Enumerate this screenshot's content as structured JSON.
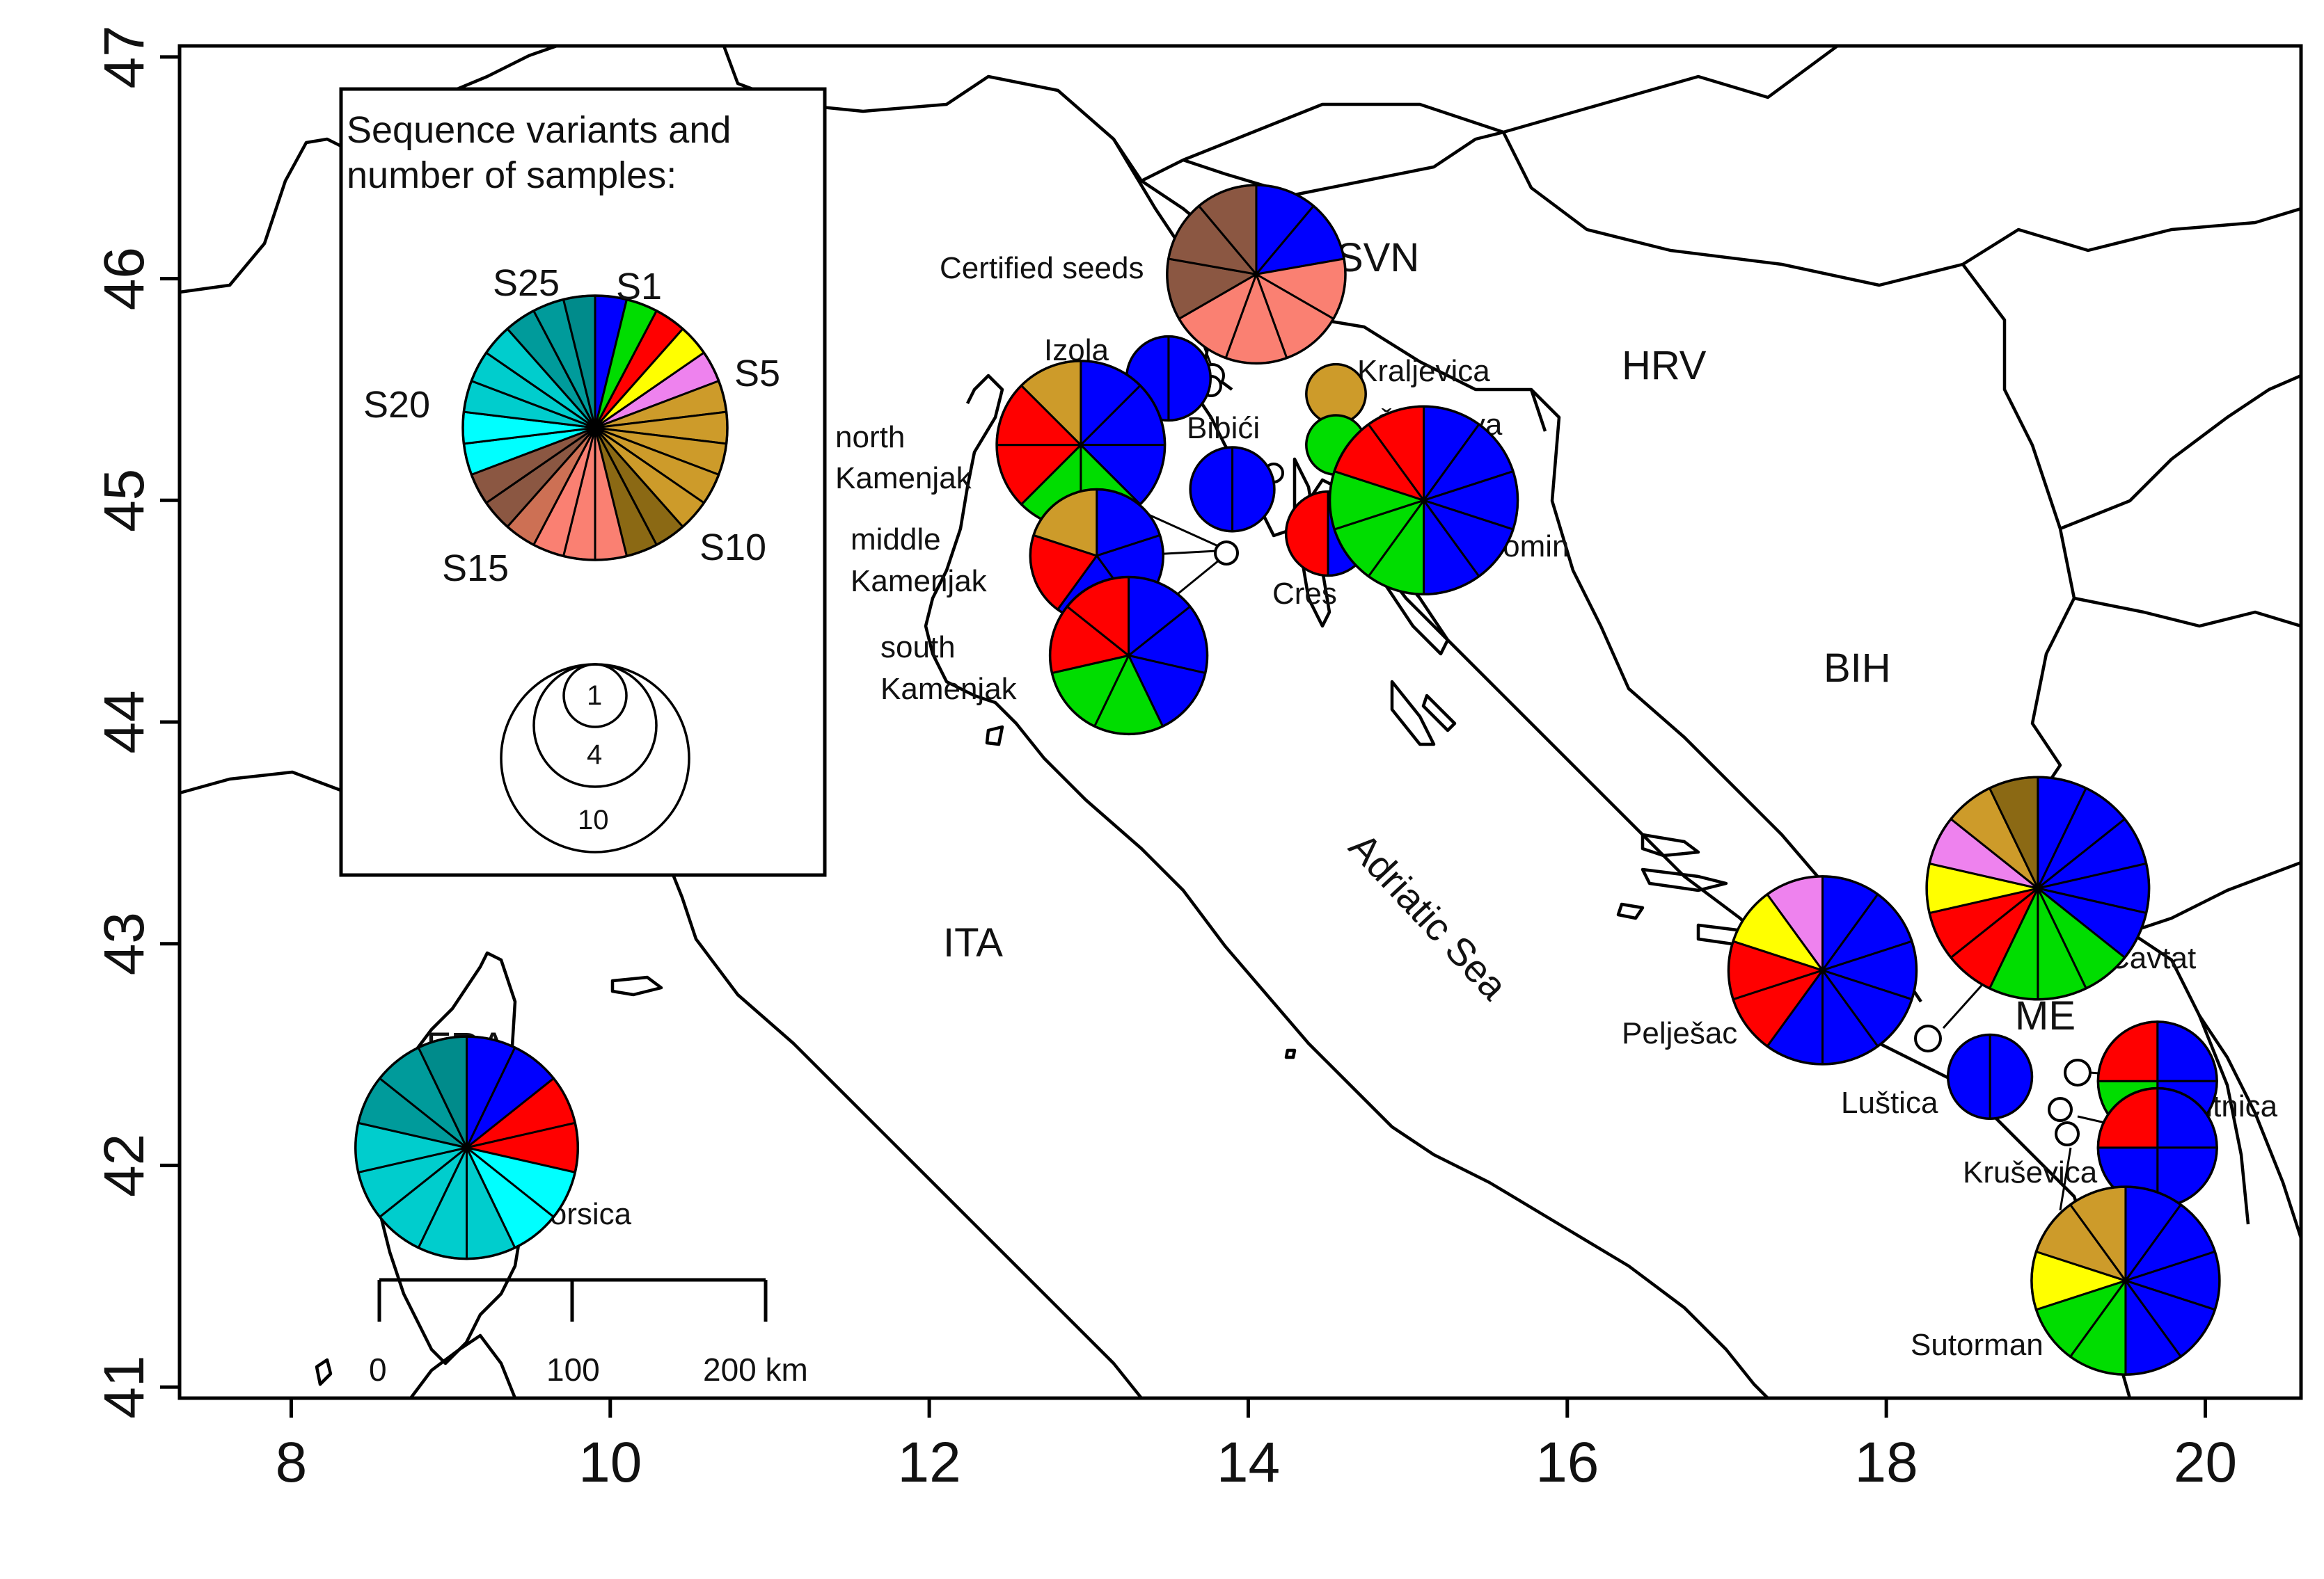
{
  "axes": {
    "x_ticks": [
      "8",
      "10",
      "12",
      "14",
      "16",
      "18",
      "20"
    ],
    "y_ticks": [
      "41",
      "42",
      "43",
      "44",
      "45",
      "46",
      "47"
    ],
    "x_range": [
      7.3,
      20.6
    ],
    "y_range": [
      40.95,
      47.05
    ]
  },
  "legend": {
    "title_line1": "Sequence variants and",
    "title_line2": "number of samples:",
    "variant_labels": [
      "S1",
      "S5",
      "S10",
      "S15",
      "S20",
      "S25"
    ],
    "size_labels": [
      "1",
      "4",
      "10"
    ]
  },
  "scale_bar": {
    "labels": [
      "0",
      "100",
      "200 km"
    ]
  },
  "labels": {
    "countries": [
      "SVN",
      "HRV",
      "BIH",
      "ITA",
      "ME",
      "FRA"
    ],
    "sea": "Adriatic Sea"
  },
  "palette": {
    "S1": "#0000ff",
    "S2": "#00dd00",
    "S3": "#ff0000",
    "S4": "#ffff00",
    "S5": "#ee82ee",
    "S6": "#cd9b2a",
    "S7": "#cd9b2a",
    "S8": "#cd9b2a",
    "S9": "#cd9b2a",
    "S10": "#cd9b2a",
    "S11": "#8b6914",
    "S12": "#8b6914",
    "S13": "#fa8072",
    "S14": "#fa8072",
    "S15": "#fa8072",
    "S16": "#cd7054",
    "S17": "#8b5742",
    "S18": "#8b5742",
    "S19": "#00ffff",
    "S20": "#00ffff",
    "S21": "#00cdcd",
    "S22": "#00cdcd",
    "S23": "#00cdcd",
    "S24": "#009b9b",
    "S25": "#009b9b",
    "S26": "#008b8b"
  },
  "sites": [
    {
      "name": "Certified seeds",
      "lon": 14.05,
      "lat": 46.02,
      "n": 9,
      "colors": [
        "#0000ff",
        "#0000ff",
        "#fa8072",
        "#fa8072",
        "#fa8072",
        "#fa8072",
        "#8b5742",
        "#8b5742",
        "#8b5742"
      ]
    },
    {
      "name": "Izola",
      "lon": 13.5,
      "lat": 45.55,
      "n": 2,
      "colors": [
        "#0000ff",
        "#0000ff"
      ]
    },
    {
      "name": "Kraljevica",
      "lon": 14.55,
      "lat": 45.48,
      "n": 1,
      "colors": [
        "#cd9b2a"
      ]
    },
    {
      "name": "Črišnjeva",
      "lon": 14.55,
      "lat": 45.25,
      "n": 1,
      "colors": [
        "#00dd00"
      ]
    },
    {
      "name": "Bibići",
      "lon": 13.9,
      "lat": 45.05,
      "n": 2,
      "colors": [
        "#0000ff",
        "#0000ff"
      ]
    },
    {
      "name": "north Kamenjak",
      "lon": 12.95,
      "lat": 45.25,
      "n": 8,
      "colors": [
        "#0000ff",
        "#0000ff",
        "#0000ff",
        "#00dd00",
        "#00dd00",
        "#ff0000",
        "#ff0000",
        "#cd9b2a"
      ]
    },
    {
      "name": "middle Kamenjak",
      "lon": 13.05,
      "lat": 44.75,
      "n": 5,
      "colors": [
        "#0000ff",
        "#0000ff",
        "#0000ff",
        "#ff0000",
        "#cd9b2a"
      ]
    },
    {
      "name": "south Kamenjak",
      "lon": 13.25,
      "lat": 44.3,
      "n": 7,
      "colors": [
        "#0000ff",
        "#0000ff",
        "#0000ff",
        "#00dd00",
        "#00dd00",
        "#ff0000",
        "#ff0000"
      ]
    },
    {
      "name": "Cres",
      "lon": 14.5,
      "lat": 44.85,
      "n": 2,
      "colors": [
        "#0000ff",
        "#ff0000"
      ]
    },
    {
      "name": "Plomin",
      "lon": 15.1,
      "lat": 45.0,
      "n": 10,
      "colors": [
        "#0000ff",
        "#0000ff",
        "#0000ff",
        "#0000ff",
        "#0000ff",
        "#00dd00",
        "#00dd00",
        "#00dd00",
        "#ff0000",
        "#ff0000"
      ]
    },
    {
      "name": "Pelješac",
      "lon": 17.6,
      "lat": 42.88,
      "n": 10,
      "colors": [
        "#0000ff",
        "#0000ff",
        "#0000ff",
        "#0000ff",
        "#0000ff",
        "#0000ff",
        "#ff0000",
        "#ff0000",
        "#ffff00",
        "#ee82ee"
      ]
    },
    {
      "name": "Cavtat",
      "lon": 18.95,
      "lat": 43.25,
      "n": 14,
      "colors": [
        "#0000ff",
        "#0000ff",
        "#0000ff",
        "#0000ff",
        "#0000ff",
        "#00dd00",
        "#00dd00",
        "#00dd00",
        "#ff0000",
        "#ff0000",
        "#ffff00",
        "#ee82ee",
        "#cd9b2a",
        "#8b6914"
      ]
    },
    {
      "name": "Luštica",
      "lon": 18.65,
      "lat": 42.4,
      "n": 2,
      "colors": [
        "#0000ff",
        "#0000ff"
      ]
    },
    {
      "name": "Sitnica",
      "lon": 19.7,
      "lat": 42.38,
      "n": 4,
      "colors": [
        "#0000ff",
        "#0000ff",
        "#00dd00",
        "#ff0000"
      ]
    },
    {
      "name": "Kruševica",
      "lon": 19.7,
      "lat": 42.08,
      "n": 4,
      "colors": [
        "#0000ff",
        "#0000ff",
        "#0000ff",
        "#ff0000"
      ]
    },
    {
      "name": "Sutorman",
      "lon": 19.5,
      "lat": 41.48,
      "n": 10,
      "colors": [
        "#0000ff",
        "#0000ff",
        "#0000ff",
        "#0000ff",
        "#0000ff",
        "#00dd00",
        "#00dd00",
        "#ffff00",
        "#cd9b2a",
        "#cd9b2a"
      ]
    },
    {
      "name": "Corsica",
      "lon": 9.1,
      "lat": 42.08,
      "n": 14,
      "colors": [
        "#0000ff",
        "#0000ff",
        "#ff0000",
        "#ff0000",
        "#00ffff",
        "#00ffff",
        "#00cdcd",
        "#00cdcd",
        "#00cdcd",
        "#00cdcd",
        "#00cdcd",
        "#009b9b",
        "#009b9b",
        "#008b8b"
      ]
    }
  ]
}
